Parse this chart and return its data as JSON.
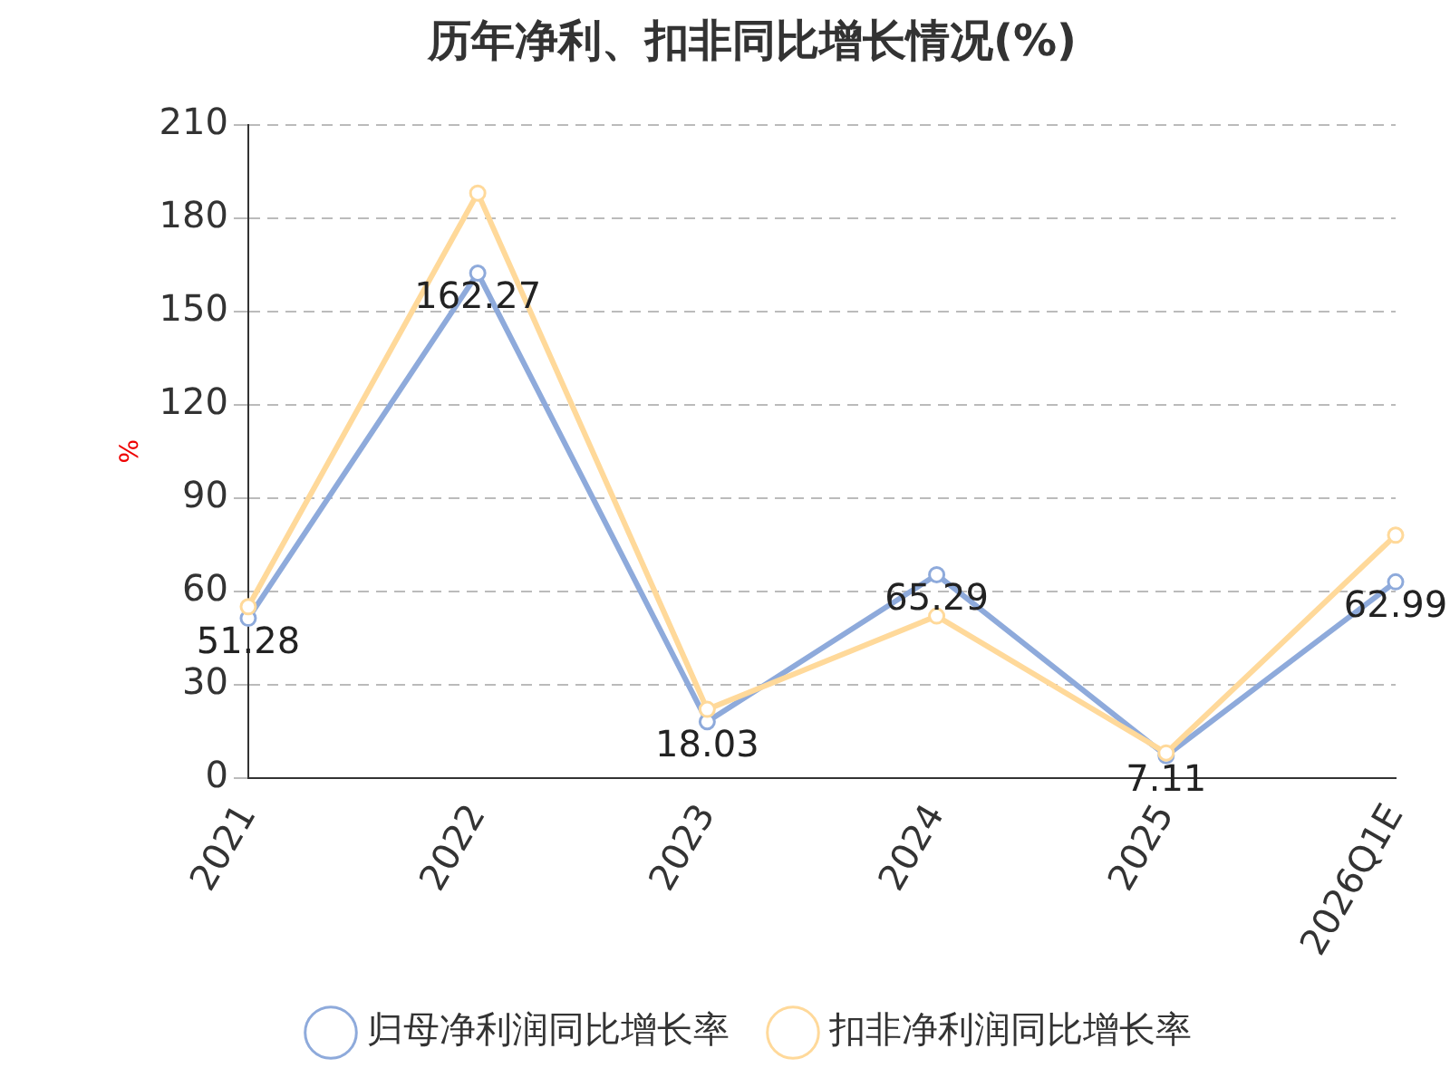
{
  "chart_data": {
    "type": "line",
    "title": "历年净利、扣非同比增长情况(%)",
    "ylabel": "%",
    "categories": [
      "2021",
      "2022",
      "2023",
      "2024",
      "2025",
      "2026Q1E"
    ],
    "series": [
      {
        "name": "归母净利润同比增长率",
        "color": "#8eaadb",
        "values": [
          51.28,
          162.27,
          18.03,
          65.29,
          7.11,
          62.99
        ],
        "value_labels": [
          "51.28",
          "162.27",
          "18.03",
          "65.29",
          "7.11",
          "62.99"
        ]
      },
      {
        "name": "扣非净利润同比增长率",
        "color": "#ffd99a",
        "values": [
          55,
          188,
          22,
          52,
          8,
          78
        ]
      }
    ],
    "ylim": [
      0,
      210
    ],
    "yticks": [
      0,
      30,
      60,
      90,
      120,
      150,
      180,
      210
    ],
    "grid": "y",
    "legend": "bottom",
    "marker": "circle",
    "line_style": "solid"
  }
}
